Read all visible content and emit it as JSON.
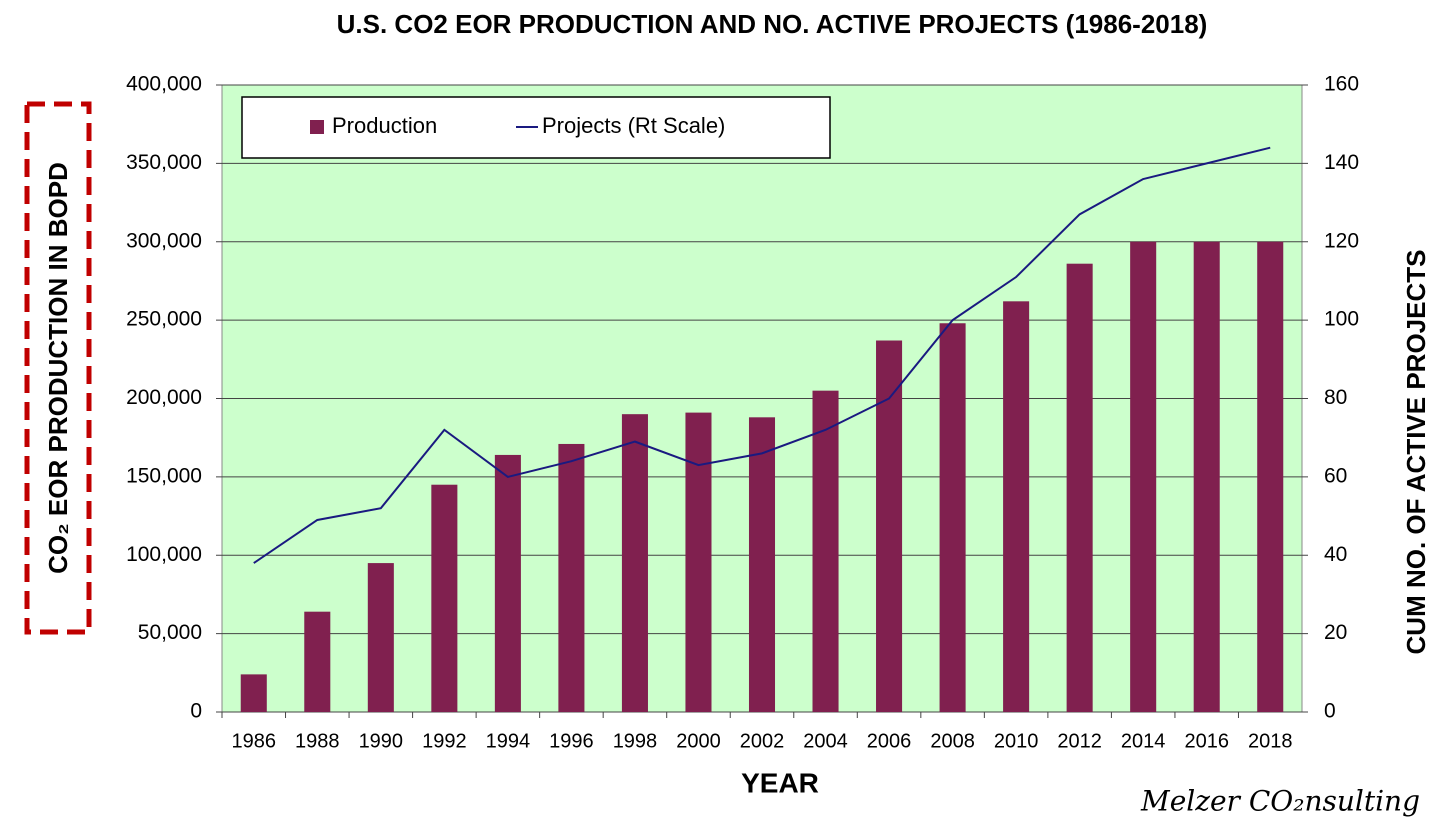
{
  "chart_data": {
    "type": "bar",
    "title": "U.S. CO2 EOR PRODUCTION AND NO. ACTIVE PROJECTS (1986-2018)",
    "x_label": "YEAR",
    "y_label": "CO₂ EOR PRODUCTION IN BOPD",
    "y2_label": "CUM NO. OF ACTIVE PROJECTS",
    "watermark": "Melzer CO₂nsulting",
    "categories": [
      "1986",
      "1988",
      "1990",
      "1992",
      "1994",
      "1996",
      "1998",
      "2000",
      "2002",
      "2004",
      "2006",
      "2008",
      "2010",
      "2012",
      "2014",
      "2016",
      "2018"
    ],
    "series": [
      {
        "name": "Production",
        "type": "bar",
        "color": "#80204f",
        "values": [
          24000,
          64000,
          95000,
          145000,
          164000,
          171000,
          190000,
          191000,
          188000,
          205000,
          237000,
          248000,
          262000,
          286000,
          300000,
          300000,
          300000
        ]
      },
      {
        "name": "Projects (Rt Scale)",
        "type": "line",
        "axis": "y2",
        "color": "#1a1a80",
        "values": [
          38,
          49,
          52,
          72,
          60,
          64,
          69,
          63,
          66,
          72,
          80,
          100,
          111,
          127,
          136,
          140,
          144
        ]
      }
    ],
    "ylim": [
      0,
      400000
    ],
    "yticks": [
      0,
      {
        "value": 50000,
        "label": "50,000"
      },
      {
        "value": 100000,
        "label": "100,000"
      },
      {
        "value": 150000,
        "label": "150,000"
      },
      {
        "value": 200000,
        "label": "200,000"
      },
      {
        "value": 250000,
        "label": "250,000"
      },
      {
        "value": 300000,
        "label": "300,000"
      },
      {
        "value": 350000,
        "label": "350,000"
      },
      {
        "value": 400000,
        "label": "400,000"
      }
    ],
    "y2lim": [
      0,
      160
    ],
    "y2ticks": [
      0,
      20,
      40,
      60,
      80,
      100,
      120,
      140,
      160
    ],
    "grid": true,
    "legend": "top-left",
    "plot_background": "#ccffcc"
  }
}
